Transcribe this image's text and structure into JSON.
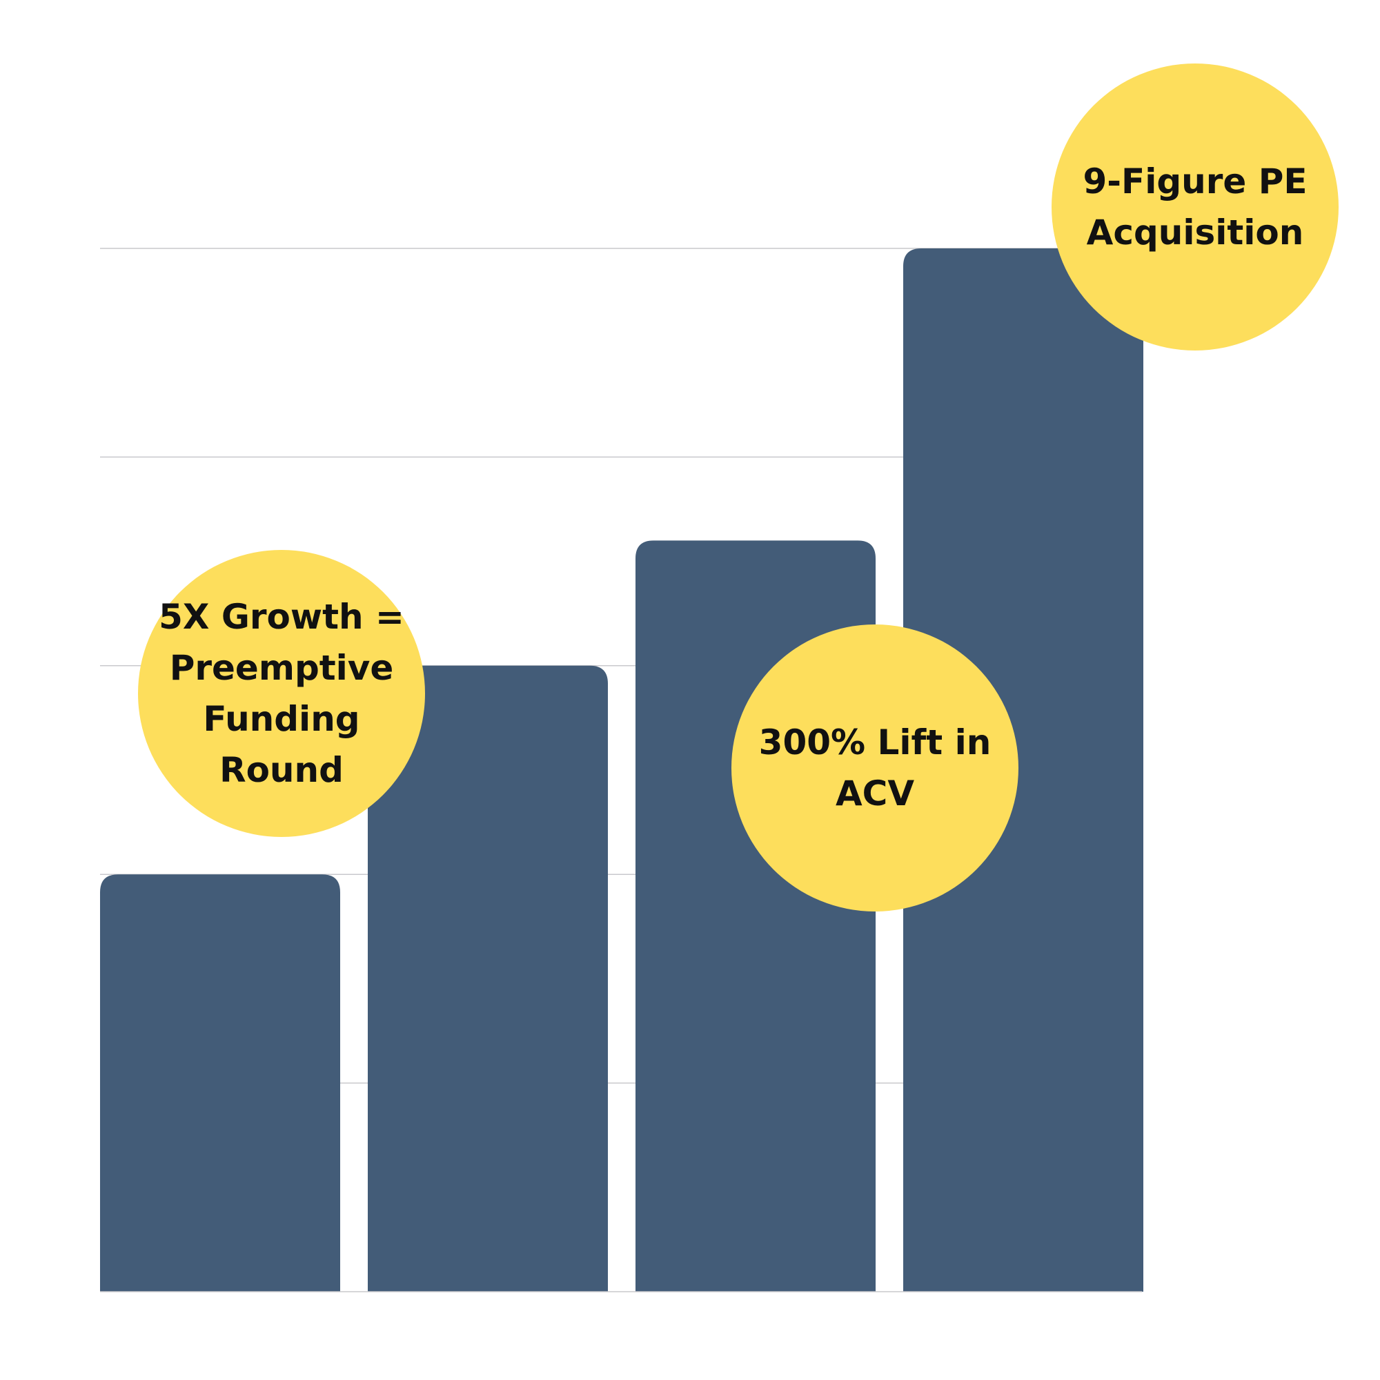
{
  "chart_data": {
    "type": "bar",
    "categories": [
      "",
      "",
      "",
      ""
    ],
    "values": [
      2,
      3,
      3.6,
      5
    ],
    "ylim": [
      0,
      5
    ],
    "grid": true,
    "gridlines_at": [
      1,
      2,
      3,
      4,
      5
    ],
    "title": "",
    "xlabel": "",
    "ylabel": "",
    "annotations": [
      {
        "bar": 0,
        "lines": [
          "5X Growth =",
          "Preemptive",
          "Funding",
          "Round"
        ]
      },
      {
        "bar": 2,
        "lines": [
          "300% Lift in",
          "ACV"
        ]
      },
      {
        "bar": 3,
        "lines": [
          "9-Figure PE",
          "Acquisition"
        ]
      }
    ]
  },
  "colors": {
    "bar": "#435c78",
    "bubble": "#fdde5c",
    "gridline": "#c8c8cc",
    "text": "#111111"
  }
}
